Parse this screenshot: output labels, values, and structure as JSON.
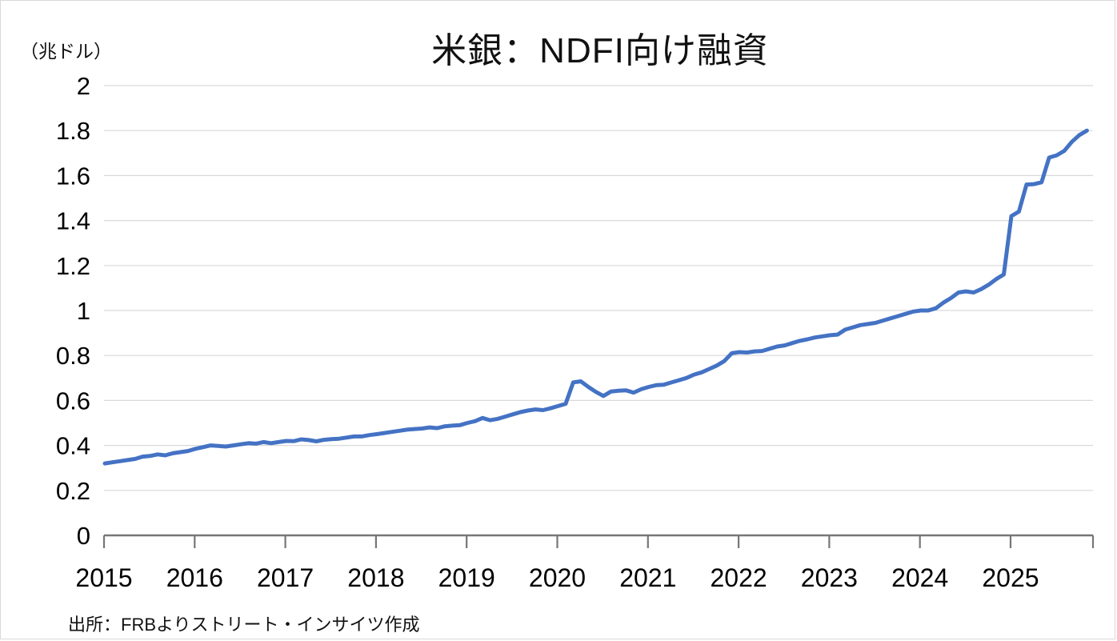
{
  "title": "米銀：NDFI向け融資",
  "y_unit_label": "（兆ドル）",
  "source_note": "出所：FRBよりストリート・インサイツ作成",
  "colors": {
    "line": "#4472C4",
    "gridline": "#D9D9D9",
    "axis": "#767676",
    "text": "#000000"
  },
  "chart_data": {
    "type": "line",
    "title": "米銀：NDFI向け融資",
    "ylabel": "（兆ドル）",
    "ylim": [
      0,
      2
    ],
    "ytick_labels": [
      "0",
      "0.2",
      "0.4",
      "0.6",
      "0.8",
      "1",
      "1.2",
      "1.4",
      "1.6",
      "1.8",
      "2"
    ],
    "ytick_values": [
      0,
      0.2,
      0.4,
      0.6,
      0.8,
      1.0,
      1.2,
      1.4,
      1.6,
      1.8,
      2.0
    ],
    "xtick_labels": [
      "2015",
      "2016",
      "2017",
      "2018",
      "2019",
      "2020",
      "2021",
      "2022",
      "2023",
      "2024",
      "2025"
    ],
    "grid": true,
    "legend": "none",
    "series": [
      {
        "name": "NDFI向け融資",
        "start": "2015-01",
        "freq": "monthly",
        "unit": "兆ドル",
        "values": [
          0.32,
          0.325,
          0.33,
          0.335,
          0.34,
          0.35,
          0.353,
          0.36,
          0.356,
          0.365,
          0.37,
          0.375,
          0.385,
          0.392,
          0.4,
          0.398,
          0.395,
          0.4,
          0.405,
          0.41,
          0.408,
          0.415,
          0.41,
          0.415,
          0.42,
          0.419,
          0.427,
          0.424,
          0.418,
          0.425,
          0.428,
          0.43,
          0.435,
          0.44,
          0.44,
          0.446,
          0.45,
          0.455,
          0.46,
          0.465,
          0.47,
          0.473,
          0.475,
          0.48,
          0.477,
          0.485,
          0.488,
          0.49,
          0.5,
          0.508,
          0.522,
          0.512,
          0.518,
          0.528,
          0.538,
          0.548,
          0.555,
          0.56,
          0.557,
          0.565,
          0.575,
          0.585,
          0.68,
          0.685,
          0.66,
          0.638,
          0.62,
          0.64,
          0.643,
          0.645,
          0.635,
          0.65,
          0.66,
          0.668,
          0.67,
          0.68,
          0.69,
          0.7,
          0.715,
          0.725,
          0.74,
          0.755,
          0.775,
          0.81,
          0.815,
          0.813,
          0.818,
          0.82,
          0.83,
          0.84,
          0.845,
          0.855,
          0.865,
          0.872,
          0.88,
          0.885,
          0.89,
          0.893,
          0.915,
          0.925,
          0.935,
          0.94,
          0.945,
          0.955,
          0.965,
          0.975,
          0.985,
          0.995,
          1.0,
          1.0,
          1.01,
          1.035,
          1.055,
          1.08,
          1.085,
          1.08,
          1.095,
          1.115,
          1.14,
          1.16,
          1.42,
          1.44,
          1.56,
          1.562,
          1.57,
          1.68,
          1.69,
          1.71,
          1.75,
          1.78,
          1.8
        ]
      }
    ]
  }
}
